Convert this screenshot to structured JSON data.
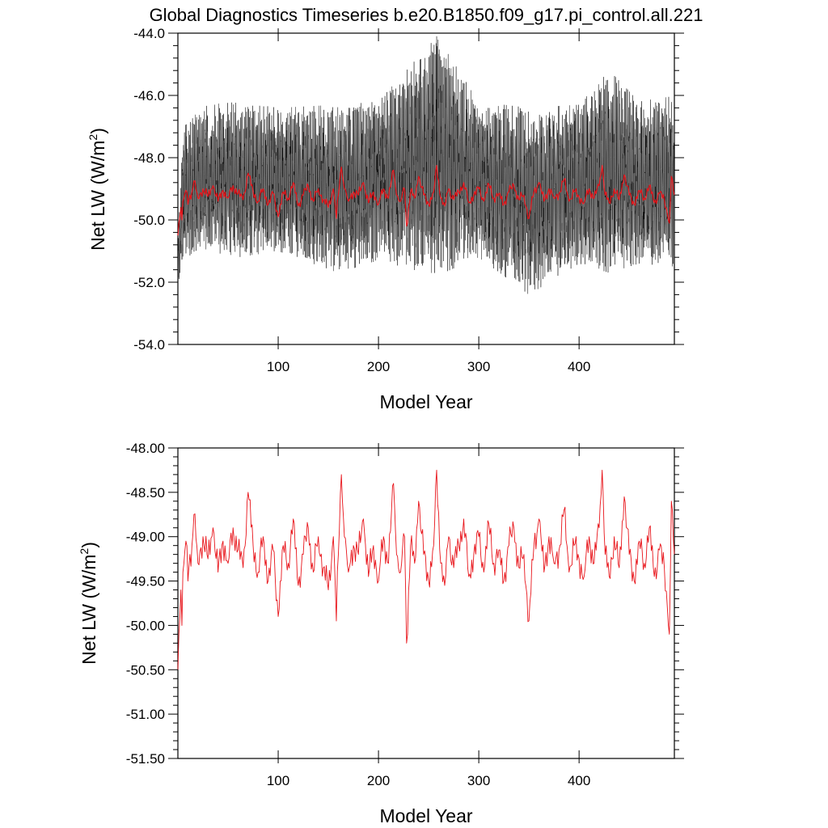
{
  "figure": {
    "title": "Global Diagnostics Timeseries b.e20.B1850.f09_g17.pi_control.all.221"
  },
  "colors": {
    "monthly_series": "#000000",
    "annual_series": "#e8141a",
    "frame": "#000000",
    "background": "#ffffff"
  },
  "chart_data": [
    {
      "type": "line",
      "title": "Global Diagnostics Timeseries b.e20.B1850.f09_g17.pi_control.all.221",
      "xlabel": "Model Year",
      "ylabel": "Net LW (W/m2)",
      "ylabel_parts": {
        "main": "Net LW (W/m",
        "sup": "2",
        "close": ")"
      },
      "xlim": [
        0,
        495
      ],
      "ylim": [
        -54.0,
        -44.0
      ],
      "xticks": [
        100,
        200,
        300,
        400
      ],
      "xtick_labels": [
        "100",
        "200",
        "300",
        "400"
      ],
      "yticks": [
        -54.0,
        -52.0,
        -50.0,
        -48.0,
        -46.0,
        -44.0
      ],
      "ytick_labels": [
        "-54.0",
        "-52.0",
        "-50.0",
        "-48.0",
        "-46.0",
        "-44.0"
      ],
      "grid": false,
      "series": [
        {
          "role": "monthly",
          "color": "#000000",
          "x_start": 0.04,
          "x_step": 0.0833,
          "count": 5940,
          "typical_range": [
            -51.3,
            -46.2
          ],
          "extremes": {
            "min": -52.4,
            "max": -44.1,
            "x_at_max": 258
          },
          "y_envelope_anchors": {
            "x": [
              0,
              5,
              30,
              60,
              100,
              160,
              200,
              258,
              300,
              350,
              400,
              430,
              460,
              495
            ],
            "upper": [
              -51.0,
              -46.8,
              -46.3,
              -46.2,
              -46.4,
              -46.3,
              -46.2,
              -44.1,
              -46.2,
              -46.4,
              -46.3,
              -45.2,
              -46.2,
              -46.0
            ],
            "lower": [
              -52.3,
              -51.3,
              -51.0,
              -51.2,
              -51.0,
              -51.7,
              -51.3,
              -51.8,
              -51.2,
              -52.4,
              -51.4,
              -51.7,
              -51.4,
              -51.5
            ]
          }
        },
        {
          "role": "annual",
          "color": "#e8141a",
          "x": [
            0,
            1,
            2,
            3,
            4,
            5,
            6,
            8,
            10,
            12,
            14,
            16,
            20,
            25,
            30,
            35,
            40,
            45,
            50,
            55,
            60,
            65,
            70,
            75,
            80,
            85,
            90,
            95,
            100,
            105,
            110,
            115,
            120,
            125,
            130,
            135,
            140,
            145,
            150,
            155,
            158,
            160,
            163,
            166,
            170,
            175,
            180,
            185,
            190,
            195,
            200,
            205,
            210,
            215,
            218,
            222,
            226,
            228,
            232,
            236,
            240,
            245,
            250,
            255,
            258,
            262,
            266,
            270,
            275,
            280,
            285,
            290,
            295,
            300,
            305,
            310,
            315,
            320,
            325,
            330,
            335,
            340,
            345,
            350,
            355,
            360,
            365,
            370,
            375,
            380,
            385,
            390,
            395,
            400,
            405,
            410,
            415,
            420,
            423,
            426,
            430,
            435,
            440,
            445,
            450,
            455,
            460,
            465,
            470,
            475,
            480,
            485,
            488,
            490,
            492,
            495
          ],
          "y": [
            -50.5,
            -50.1,
            -49.9,
            -49.6,
            -50.0,
            -49.4,
            -49.3,
            -49.05,
            -49.5,
            -49.2,
            -49.1,
            -48.75,
            -49.3,
            -49.0,
            -49.25,
            -48.9,
            -49.4,
            -49.05,
            -49.3,
            -48.9,
            -49.15,
            -49.35,
            -48.5,
            -49.1,
            -49.4,
            -49.0,
            -49.5,
            -49.15,
            -49.9,
            -49.1,
            -49.3,
            -48.8,
            -49.55,
            -49.2,
            -48.9,
            -49.4,
            -49.0,
            -49.35,
            -49.6,
            -49.0,
            -49.95,
            -49.2,
            -48.3,
            -49.0,
            -49.4,
            -49.1,
            -49.2,
            -48.8,
            -49.45,
            -49.1,
            -49.5,
            -49.0,
            -49.3,
            -48.4,
            -49.2,
            -49.4,
            -49.0,
            -50.2,
            -49.1,
            -49.3,
            -48.6,
            -49.2,
            -49.5,
            -49.1,
            -48.25,
            -49.3,
            -49.55,
            -49.0,
            -49.35,
            -49.1,
            -48.8,
            -49.45,
            -49.2,
            -49.0,
            -49.4,
            -48.85,
            -49.3,
            -49.15,
            -49.5,
            -49.1,
            -48.9,
            -49.35,
            -49.2,
            -49.95,
            -49.1,
            -48.8,
            -49.4,
            -49.0,
            -49.3,
            -49.15,
            -48.7,
            -49.4,
            -49.1,
            -49.25,
            -49.45,
            -49.0,
            -49.3,
            -48.9,
            -48.25,
            -49.2,
            -49.45,
            -49.0,
            -49.35,
            -48.55,
            -49.2,
            -49.5,
            -49.05,
            -49.3,
            -48.9,
            -49.45,
            -49.15,
            -49.35,
            -49.8,
            -50.1,
            -48.6,
            -49.2
          ]
        }
      ]
    },
    {
      "type": "line",
      "xlabel": "Model Year",
      "ylabel": "Net LW (W/m2)",
      "ylabel_parts": {
        "main": "Net LW (W/m",
        "sup": "2",
        "close": ")"
      },
      "xlim": [
        0,
        495
      ],
      "ylim": [
        -51.5,
        -48.0
      ],
      "xticks": [
        100,
        200,
        300,
        400
      ],
      "xtick_labels": [
        "100",
        "200",
        "300",
        "400"
      ],
      "yticks": [
        -51.5,
        -51.0,
        -50.5,
        -50.0,
        -49.5,
        -49.0,
        -48.5,
        -48.0
      ],
      "ytick_labels": [
        "-51.50",
        "-51.00",
        "-50.50",
        "-50.00",
        "-49.50",
        "-49.00",
        "-48.50",
        "-48.00"
      ],
      "grid": false,
      "series": [
        {
          "role": "annual",
          "color": "#e8141a",
          "x": [
            0,
            1,
            2,
            3,
            4,
            5,
            6,
            8,
            10,
            12,
            14,
            16,
            20,
            25,
            30,
            35,
            40,
            45,
            50,
            55,
            60,
            65,
            70,
            75,
            80,
            85,
            90,
            95,
            100,
            105,
            110,
            115,
            120,
            125,
            130,
            135,
            140,
            145,
            150,
            155,
            158,
            160,
            163,
            166,
            170,
            175,
            180,
            185,
            190,
            195,
            200,
            205,
            210,
            215,
            218,
            222,
            226,
            228,
            232,
            236,
            240,
            245,
            250,
            255,
            258,
            262,
            266,
            270,
            275,
            280,
            285,
            290,
            295,
            300,
            305,
            310,
            315,
            320,
            325,
            330,
            335,
            340,
            345,
            350,
            355,
            360,
            365,
            370,
            375,
            380,
            385,
            390,
            395,
            400,
            405,
            410,
            415,
            420,
            423,
            426,
            430,
            435,
            440,
            445,
            450,
            455,
            460,
            465,
            470,
            475,
            480,
            485,
            488,
            490,
            492,
            495
          ],
          "y": [
            -50.5,
            -50.1,
            -49.9,
            -49.6,
            -50.0,
            -49.4,
            -49.3,
            -49.05,
            -49.5,
            -49.2,
            -49.1,
            -48.75,
            -49.3,
            -49.0,
            -49.25,
            -48.9,
            -49.4,
            -49.05,
            -49.3,
            -48.9,
            -49.15,
            -49.35,
            -48.5,
            -49.1,
            -49.4,
            -49.0,
            -49.5,
            -49.15,
            -49.9,
            -49.1,
            -49.3,
            -48.8,
            -49.55,
            -49.2,
            -48.9,
            -49.4,
            -49.0,
            -49.35,
            -49.6,
            -49.0,
            -49.95,
            -49.2,
            -48.3,
            -49.0,
            -49.4,
            -49.1,
            -49.2,
            -48.8,
            -49.45,
            -49.1,
            -49.5,
            -49.0,
            -49.3,
            -48.4,
            -49.2,
            -49.4,
            -49.0,
            -50.2,
            -49.1,
            -49.3,
            -48.6,
            -49.2,
            -49.5,
            -49.1,
            -48.25,
            -49.3,
            -49.55,
            -49.0,
            -49.35,
            -49.1,
            -48.8,
            -49.45,
            -49.2,
            -49.0,
            -49.4,
            -48.85,
            -49.3,
            -49.15,
            -49.5,
            -49.1,
            -48.9,
            -49.35,
            -49.2,
            -49.95,
            -49.1,
            -48.8,
            -49.4,
            -49.0,
            -49.3,
            -49.15,
            -48.7,
            -49.4,
            -49.1,
            -49.25,
            -49.45,
            -49.0,
            -49.3,
            -48.9,
            -48.25,
            -49.2,
            -49.45,
            -49.0,
            -49.35,
            -48.55,
            -49.2,
            -49.5,
            -49.05,
            -49.3,
            -48.9,
            -49.45,
            -49.15,
            -49.35,
            -49.8,
            -50.1,
            -48.6,
            -49.2
          ]
        }
      ]
    }
  ]
}
